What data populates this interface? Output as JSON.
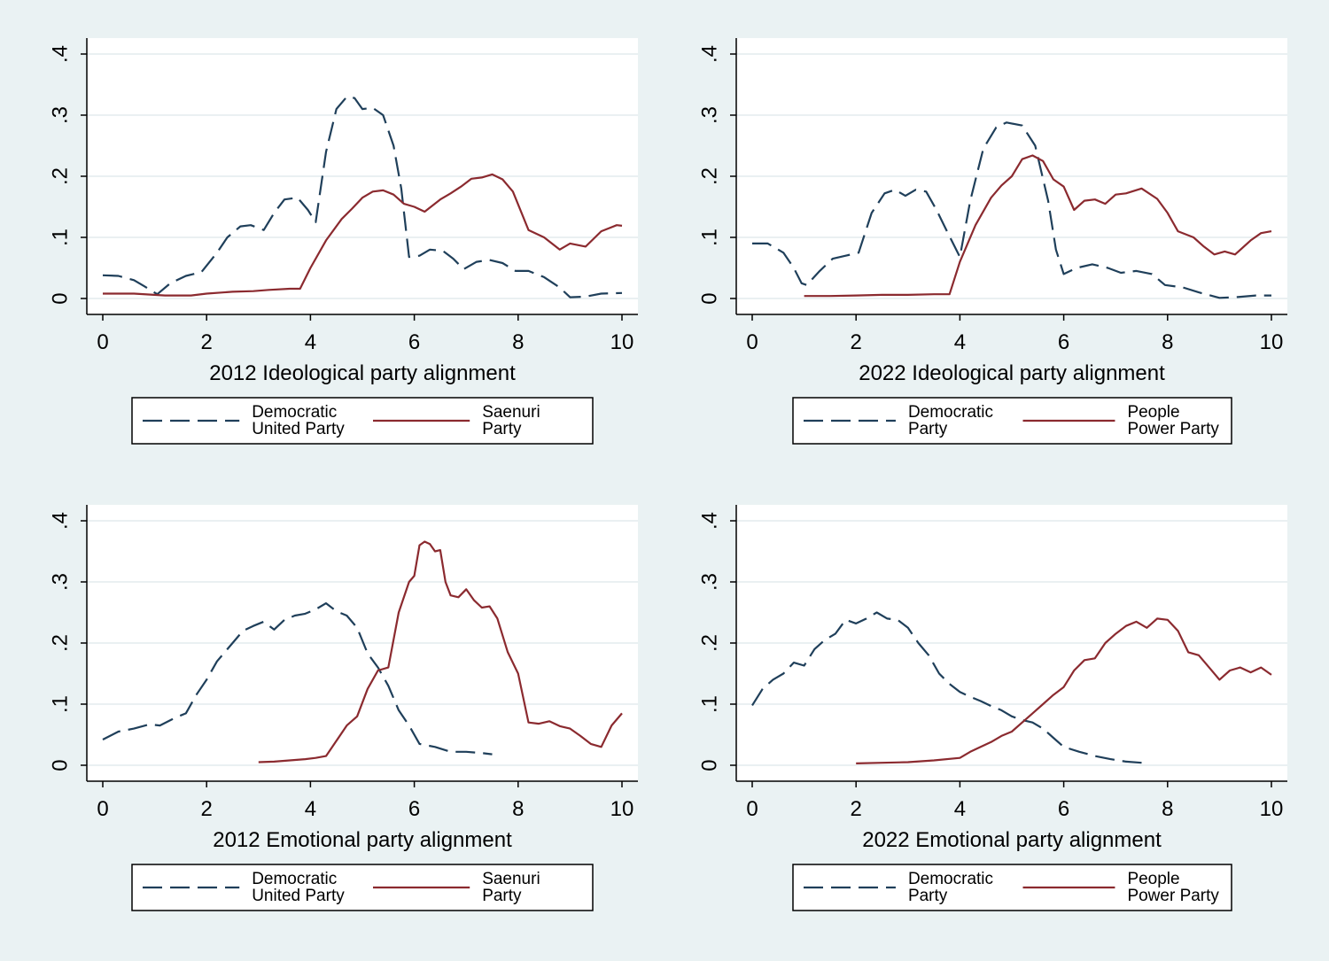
{
  "colors": {
    "figure_bg": "#eaf2f3",
    "plot_bg": "#ffffff",
    "grid": "#e3ecee",
    "democratic": "#1f3f5a",
    "conservative": "#8b2a2f"
  },
  "chart_data": [
    {
      "type": "line",
      "title": "",
      "xlabel": "2012 Ideological party alignment",
      "ylabel": "",
      "xlim": [
        0,
        10
      ],
      "ylim": [
        0,
        0.4
      ],
      "xticks": [
        "0",
        "2",
        "4",
        "6",
        "8",
        "10"
      ],
      "yticks": [
        "0",
        ".1",
        ".2",
        ".3",
        ".4"
      ],
      "grid": true,
      "legend": "bottom",
      "series": [
        {
          "name": "Democratic United Party",
          "style": "dashed",
          "x": [
            0,
            0.3,
            0.6,
            0.8,
            1.05,
            1.3,
            1.6,
            1.9,
            2.2,
            2.4,
            2.65,
            2.85,
            3.1,
            3.3,
            3.5,
            3.75,
            3.95,
            4.1,
            4.3,
            4.5,
            4.7,
            4.85,
            5.0,
            5.2,
            5.4,
            5.6,
            5.75,
            5.9,
            6.1,
            6.3,
            6.55,
            6.75,
            6.95,
            7.2,
            7.45,
            7.7,
            7.95,
            8.2,
            8.5,
            8.8,
            9.0,
            9.3,
            9.6,
            10.0
          ],
          "y": [
            0.038,
            0.037,
            0.03,
            0.02,
            0.007,
            0.025,
            0.037,
            0.043,
            0.075,
            0.1,
            0.118,
            0.12,
            0.112,
            0.14,
            0.162,
            0.165,
            0.145,
            0.125,
            0.24,
            0.31,
            0.33,
            0.328,
            0.31,
            0.312,
            0.3,
            0.25,
            0.18,
            0.068,
            0.07,
            0.08,
            0.078,
            0.065,
            0.048,
            0.06,
            0.063,
            0.058,
            0.045,
            0.045,
            0.035,
            0.018,
            0.002,
            0.003,
            0.008,
            0.009
          ]
        },
        {
          "name": "Saenuri Party",
          "style": "solid",
          "x": [
            0,
            0.6,
            1.2,
            1.7,
            2.0,
            2.5,
            2.9,
            3.2,
            3.6,
            3.8,
            4.0,
            4.3,
            4.6,
            4.8,
            5.0,
            5.2,
            5.4,
            5.6,
            5.8,
            6.0,
            6.2,
            6.5,
            6.7,
            6.9,
            7.1,
            7.3,
            7.5,
            7.7,
            7.9,
            8.2,
            8.5,
            8.8,
            9.0,
            9.3,
            9.6,
            9.9,
            10.0
          ],
          "y": [
            0.008,
            0.008,
            0.005,
            0.005,
            0.008,
            0.011,
            0.012,
            0.014,
            0.016,
            0.016,
            0.05,
            0.095,
            0.13,
            0.147,
            0.165,
            0.175,
            0.177,
            0.17,
            0.155,
            0.15,
            0.142,
            0.162,
            0.172,
            0.183,
            0.196,
            0.198,
            0.203,
            0.195,
            0.175,
            0.112,
            0.1,
            0.08,
            0.09,
            0.085,
            0.11,
            0.12,
            0.119
          ]
        }
      ]
    },
    {
      "type": "line",
      "title": "",
      "xlabel": "2022 Ideological party alignment",
      "ylabel": "",
      "xlim": [
        0,
        10
      ],
      "ylim": [
        0,
        0.4
      ],
      "xticks": [
        "0",
        "2",
        "4",
        "6",
        "8",
        "10"
      ],
      "yticks": [
        "0",
        ".1",
        ".2",
        ".3",
        ".4"
      ],
      "grid": true,
      "legend": "bottom",
      "series": [
        {
          "name": "Democratic Party",
          "style": "dashed",
          "x": [
            0,
            0.3,
            0.6,
            0.8,
            0.95,
            1.05,
            1.3,
            1.55,
            1.8,
            2.05,
            2.3,
            2.55,
            2.75,
            2.95,
            3.15,
            3.35,
            3.55,
            3.75,
            4.0,
            4.2,
            4.45,
            4.7,
            4.9,
            5.2,
            5.45,
            5.7,
            5.85,
            6.0,
            6.25,
            6.55,
            6.85,
            7.1,
            7.4,
            7.7,
            7.95,
            8.3,
            8.6,
            9.0,
            9.3,
            9.7,
            10.0
          ],
          "y": [
            0.09,
            0.09,
            0.075,
            0.05,
            0.025,
            0.022,
            0.045,
            0.065,
            0.07,
            0.075,
            0.14,
            0.172,
            0.178,
            0.168,
            0.178,
            0.175,
            0.145,
            0.11,
            0.068,
            0.16,
            0.245,
            0.28,
            0.288,
            0.283,
            0.25,
            0.16,
            0.08,
            0.04,
            0.05,
            0.056,
            0.05,
            0.042,
            0.045,
            0.04,
            0.022,
            0.018,
            0.01,
            0.001,
            0.002,
            0.005,
            0.005
          ]
        },
        {
          "name": "People Power Party",
          "style": "solid",
          "x": [
            1.0,
            1.5,
            2.0,
            2.5,
            3.0,
            3.5,
            3.8,
            4.0,
            4.3,
            4.6,
            4.8,
            5.0,
            5.2,
            5.4,
            5.6,
            5.8,
            6.0,
            6.2,
            6.4,
            6.6,
            6.8,
            7.0,
            7.2,
            7.5,
            7.8,
            8.0,
            8.2,
            8.5,
            8.7,
            8.9,
            9.1,
            9.3,
            9.6,
            9.8,
            10.0
          ],
          "y": [
            0.004,
            0.004,
            0.005,
            0.006,
            0.006,
            0.007,
            0.007,
            0.06,
            0.12,
            0.165,
            0.185,
            0.2,
            0.228,
            0.234,
            0.225,
            0.195,
            0.183,
            0.145,
            0.16,
            0.162,
            0.155,
            0.17,
            0.172,
            0.18,
            0.163,
            0.14,
            0.11,
            0.1,
            0.085,
            0.072,
            0.077,
            0.072,
            0.095,
            0.107,
            0.11
          ]
        }
      ]
    },
    {
      "type": "line",
      "title": "",
      "xlabel": "2012 Emotional party alignment",
      "ylabel": "",
      "xlim": [
        0,
        10
      ],
      "ylim": [
        0,
        0.4
      ],
      "xticks": [
        "0",
        "2",
        "4",
        "6",
        "8",
        "10"
      ],
      "yticks": [
        "0",
        ".1",
        ".2",
        ".3",
        ".4"
      ],
      "grid": true,
      "legend": "bottom",
      "series": [
        {
          "name": "Democratic United Party",
          "style": "dashed",
          "x": [
            0,
            0.3,
            0.6,
            0.9,
            1.1,
            1.4,
            1.6,
            1.8,
            2.0,
            2.2,
            2.5,
            2.7,
            2.9,
            3.1,
            3.3,
            3.5,
            3.7,
            3.9,
            4.1,
            4.3,
            4.5,
            4.7,
            4.9,
            5.1,
            5.3,
            5.5,
            5.7,
            5.9,
            6.1,
            6.4,
            6.7,
            7.0,
            7.3,
            7.5
          ],
          "y": [
            0.042,
            0.055,
            0.06,
            0.067,
            0.065,
            0.078,
            0.085,
            0.115,
            0.14,
            0.17,
            0.2,
            0.22,
            0.228,
            0.235,
            0.222,
            0.238,
            0.245,
            0.248,
            0.255,
            0.265,
            0.252,
            0.245,
            0.225,
            0.183,
            0.16,
            0.13,
            0.09,
            0.065,
            0.035,
            0.03,
            0.022,
            0.022,
            0.02,
            0.018
          ]
        },
        {
          "name": "Saenuri Party",
          "style": "solid",
          "x": [
            3.0,
            3.3,
            3.6,
            3.9,
            4.1,
            4.3,
            4.5,
            4.7,
            4.9,
            5.1,
            5.3,
            5.5,
            5.7,
            5.9,
            6.0,
            6.1,
            6.2,
            6.3,
            6.4,
            6.5,
            6.6,
            6.7,
            6.85,
            7.0,
            7.15,
            7.3,
            7.45,
            7.6,
            7.8,
            8.0,
            8.2,
            8.4,
            8.6,
            8.8,
            9.0,
            9.2,
            9.4,
            9.6,
            9.8,
            10.0
          ],
          "y": [
            0.005,
            0.006,
            0.008,
            0.01,
            0.012,
            0.015,
            0.04,
            0.065,
            0.08,
            0.125,
            0.155,
            0.16,
            0.25,
            0.3,
            0.31,
            0.36,
            0.366,
            0.362,
            0.35,
            0.352,
            0.3,
            0.278,
            0.275,
            0.288,
            0.27,
            0.258,
            0.26,
            0.24,
            0.185,
            0.15,
            0.07,
            0.068,
            0.072,
            0.064,
            0.06,
            0.048,
            0.035,
            0.03,
            0.065,
            0.085
          ]
        }
      ]
    },
    {
      "type": "line",
      "title": "",
      "xlabel": "2022 Emotional party alignment",
      "ylabel": "",
      "xlim": [
        0,
        10
      ],
      "ylim": [
        0,
        0.4
      ],
      "xticks": [
        "0",
        "2",
        "4",
        "6",
        "8",
        "10"
      ],
      "yticks": [
        "0",
        ".1",
        ".2",
        ".3",
        ".4"
      ],
      "grid": true,
      "legend": "bottom",
      "series": [
        {
          "name": "Democratic Party",
          "style": "dashed",
          "x": [
            0,
            0.2,
            0.4,
            0.6,
            0.8,
            1.0,
            1.2,
            1.4,
            1.6,
            1.8,
            2.0,
            2.2,
            2.4,
            2.6,
            2.8,
            3.0,
            3.2,
            3.4,
            3.6,
            3.8,
            4.0,
            4.2,
            4.4,
            4.6,
            4.8,
            5.0,
            5.2,
            5.4,
            5.6,
            5.8,
            6.0,
            6.3,
            6.6,
            6.9,
            7.2,
            7.5
          ],
          "y": [
            0.098,
            0.125,
            0.14,
            0.15,
            0.168,
            0.163,
            0.19,
            0.205,
            0.215,
            0.238,
            0.232,
            0.24,
            0.25,
            0.24,
            0.238,
            0.225,
            0.2,
            0.18,
            0.15,
            0.133,
            0.12,
            0.112,
            0.105,
            0.097,
            0.09,
            0.08,
            0.074,
            0.07,
            0.06,
            0.045,
            0.03,
            0.022,
            0.015,
            0.01,
            0.006,
            0.004
          ]
        },
        {
          "name": "People Power Party",
          "style": "solid",
          "x": [
            2.0,
            2.5,
            3.0,
            3.5,
            4.0,
            4.2,
            4.4,
            4.6,
            4.8,
            5.0,
            5.2,
            5.4,
            5.6,
            5.8,
            6.0,
            6.2,
            6.4,
            6.6,
            6.8,
            7.0,
            7.2,
            7.4,
            7.6,
            7.8,
            8.0,
            8.2,
            8.4,
            8.6,
            8.8,
            9.0,
            9.2,
            9.4,
            9.6,
            9.8,
            10.0
          ],
          "y": [
            0.003,
            0.004,
            0.005,
            0.008,
            0.012,
            0.022,
            0.03,
            0.038,
            0.048,
            0.055,
            0.07,
            0.085,
            0.1,
            0.115,
            0.128,
            0.155,
            0.172,
            0.175,
            0.2,
            0.215,
            0.228,
            0.235,
            0.225,
            0.24,
            0.238,
            0.22,
            0.185,
            0.18,
            0.16,
            0.14,
            0.155,
            0.16,
            0.152,
            0.16,
            0.148
          ]
        }
      ]
    }
  ]
}
